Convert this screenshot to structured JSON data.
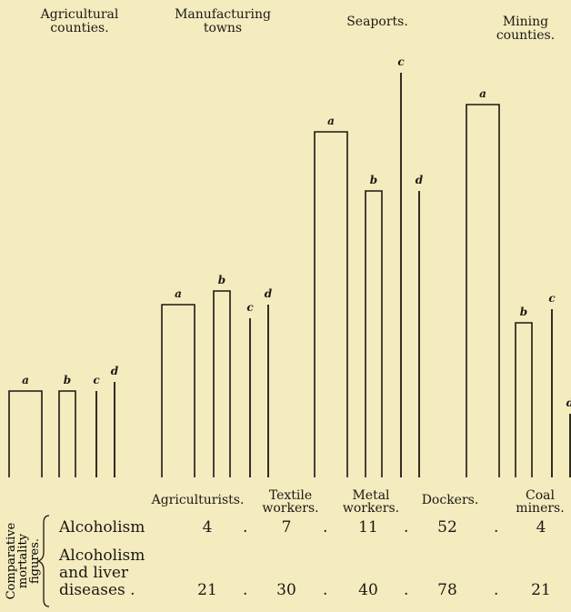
{
  "chart_data": {
    "type": "bar",
    "group_titles": [
      "Agricultural\ncounties.",
      "Manufacturing\ntowns",
      "Seaports.",
      "Mining\ncounties."
    ],
    "series": [
      {
        "name": "a",
        "values": [
          95,
          190,
          380,
          410,
          null
        ]
      },
      {
        "name": "b",
        "values": [
          95,
          205,
          315,
          null,
          170
        ]
      },
      {
        "name": "c",
        "values": [
          95,
          175,
          445,
          null,
          185
        ]
      },
      {
        "name": "d",
        "values": [
          105,
          190,
          315,
          null,
          70
        ]
      }
    ],
    "categories": [
      "Agriculturists.",
      "Textile\nworkers.",
      "Metal\nworkers.",
      "Dockers.",
      "Coal\nminers."
    ],
    "table": {
      "side_label": [
        "Comparative",
        "mortality",
        "figures."
      ],
      "rows": [
        {
          "label": "Alcoholism",
          "values": [
            "4",
            "7",
            "11",
            "52",
            "4"
          ]
        },
        {
          "label": "Alcoholism\n  and liver\n    diseases .",
          "values": [
            "21",
            "30",
            "40",
            "78",
            "21"
          ]
        }
      ]
    }
  }
}
